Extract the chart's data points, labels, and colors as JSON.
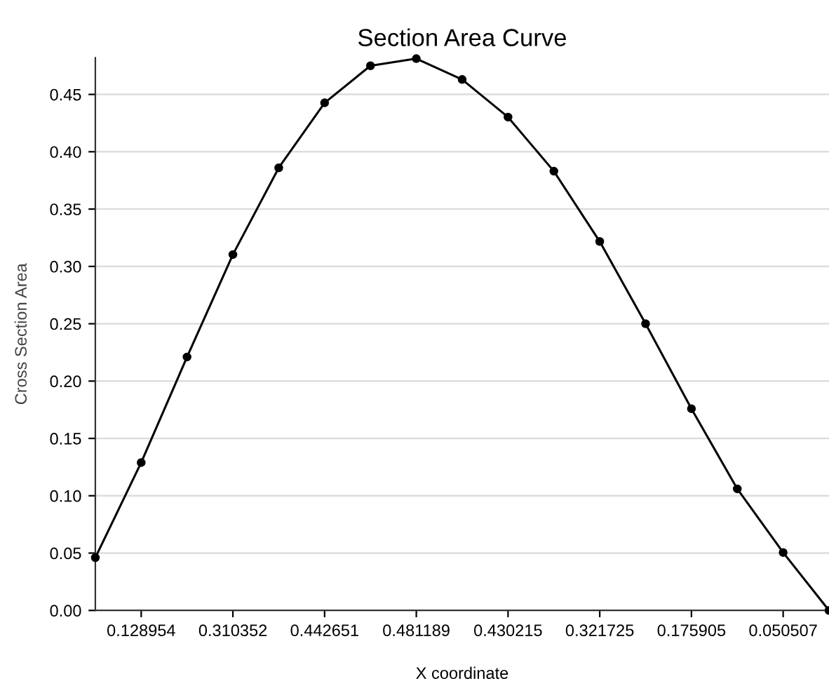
{
  "chart_data": {
    "type": "line",
    "title": "Section Area Curve",
    "xlabel": "X coordinate",
    "ylabel": "Cross Section Area",
    "categories": [
      null,
      "0.128954",
      null,
      "0.310352",
      null,
      "0.442651",
      null,
      "0.481189",
      null,
      "0.430215",
      null,
      "0.321725",
      null,
      "0.175905",
      null,
      "0.050507",
      null
    ],
    "series": [
      {
        "color": "#000000",
        "values": [
          0.046,
          0.128954,
          0.221,
          0.310352,
          0.386,
          0.442651,
          0.475,
          0.481189,
          0.463,
          0.430215,
          0.383,
          0.321725,
          0.25,
          0.175905,
          0.106,
          0.050507,
          0.0
        ]
      }
    ],
    "ylim": [
      0,
      0.482
    ],
    "yticks": [
      {
        "value": 0,
        "label": "0.00"
      },
      {
        "value": 0.05,
        "label": "0.05"
      },
      {
        "value": 0.1,
        "label": "0.10"
      },
      {
        "value": 0.15,
        "label": "0.15"
      },
      {
        "value": 0.2,
        "label": "0.20"
      },
      {
        "value": 0.25,
        "label": "0.25"
      },
      {
        "value": 0.3,
        "label": "0.30"
      },
      {
        "value": 0.35,
        "label": "0.35"
      },
      {
        "value": 0.4,
        "label": "0.40"
      },
      {
        "value": 0.45,
        "label": "0.45"
      }
    ],
    "grid": "y",
    "marker": "circle",
    "line_style": "solid",
    "legend": false
  }
}
